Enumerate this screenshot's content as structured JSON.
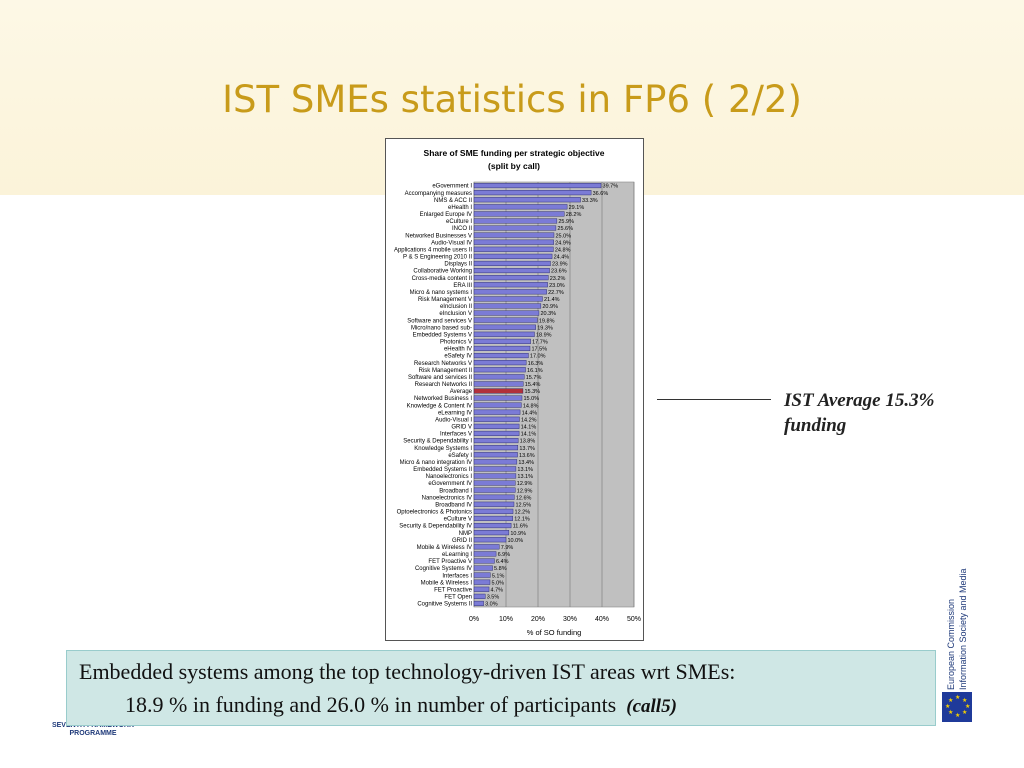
{
  "slide": {
    "title": "IST SMEs statistics in FP6 ( 2/2)",
    "annotation_line1": "IST Average  15.3%",
    "annotation_line2": "funding",
    "callout_line1": "Embedded systems among the top technology-driven IST areas wrt SMEs:",
    "callout_line2": "18.9 % in funding and 26.0 % in number of participants",
    "callout_call": "(call5)",
    "eu_text_1": "European Commission",
    "eu_text_2": "Information Society and Media",
    "fp7_text_1": "SEVENTH FRAMEWORK",
    "fp7_text_2": "PROGRAMME"
  },
  "colors": {
    "title": "#c89b1a",
    "bar": "#7b7bd6",
    "bar_highlight": "#b2303a",
    "plot_bg": "#c0c0c0",
    "callout_bg": "#cfe7e5"
  },
  "chart_data": {
    "type": "bar",
    "orientation": "horizontal",
    "title": "Share of SME funding per strategic objective",
    "subtitle": "(split by call)",
    "xlabel": "% of SO funding",
    "xlim": [
      0,
      50
    ],
    "xticks": [
      "0%",
      "10%",
      "20%",
      "30%",
      "40%",
      "50%"
    ],
    "grid": true,
    "highlight_category": "Average",
    "categories": [
      "eGovernment I",
      "Accompanying measures",
      "NMS & ACC II",
      "eHealth I",
      "Enlarged Europe IV",
      "eCulture I",
      "INCO II",
      "Networked Businesses V",
      "Audio-Visual IV",
      "Applications 4 mobile users II",
      "P & S Engineering 2010 II",
      "Displays II",
      "Collaborative Working",
      "Cross-media content II",
      "ERA III",
      "Micro & nano systems I",
      "Risk Management V",
      "eInclusion II",
      "eInclusion V",
      "Software and services V",
      "Micro/nano based sub-",
      "Embedded Systems V",
      "Photonics V",
      "eHealth IV",
      "eSafety IV",
      "Research Networks V",
      "Risk Management II",
      "Software and services II",
      "Research Networks II",
      "Average",
      "Networked Business I",
      "Knowledge & Content IV",
      "eLearning IV",
      "Audio-Visual I",
      "GRID V",
      "Interfaces V",
      "Security & Dependability I",
      "Knowledge Systems I",
      "eSafety I",
      "Micro & nano integration IV",
      "Embedded Systems II",
      "Nanoelectronics I",
      "eGovernment IV",
      "Broadband I",
      "Nanoelectronics IV",
      "Broadband IV",
      "Optoelectronics & Photonics",
      "eCulture V",
      "Security & Dependability IV",
      "NMP",
      "GRID II",
      "Mobile & Wireless IV",
      "eLearning I",
      "FET Proactive V",
      "Cognitive Systems IV",
      "Interfaces I",
      "Mobile & Wireless I",
      "FET Proactive",
      "FET Open",
      "Cognitive Systems II"
    ],
    "values": [
      39.7,
      36.6,
      33.3,
      29.1,
      28.2,
      25.9,
      25.6,
      25.0,
      24.9,
      24.8,
      24.4,
      23.9,
      23.6,
      23.2,
      23.0,
      22.7,
      21.4,
      20.9,
      20.3,
      19.8,
      19.3,
      18.9,
      17.7,
      17.5,
      17.0,
      16.3,
      16.1,
      15.7,
      15.4,
      15.3,
      15.0,
      14.8,
      14.4,
      14.2,
      14.1,
      14.1,
      13.8,
      13.7,
      13.6,
      13.4,
      13.1,
      13.1,
      12.9,
      12.9,
      12.6,
      12.5,
      12.2,
      12.1,
      11.6,
      10.9,
      10.0,
      7.9,
      6.9,
      6.4,
      5.8,
      5.1,
      5.0,
      4.7,
      3.5,
      3.0
    ],
    "value_labels": [
      "39.7%",
      "36.6%",
      "33.3%",
      "29.1%",
      "28.2%",
      "25.9%",
      "25.6%",
      "25.0%",
      "24.9%",
      "24.8%",
      "24.4%",
      "23.9%",
      "23.6%",
      "23.2%",
      "23.0%",
      "22.7%",
      "21.4%",
      "20.9%",
      "20.3%",
      "19.8%",
      "19.3%",
      "18.9%",
      "17.7%",
      "17.5%",
      "17.0%",
      "16.3%",
      "16.1%",
      "15.7%",
      "15.4%",
      "15.3%",
      "15.0%",
      "14.8%",
      "14.4%",
      "14.2%",
      "14.1%",
      "14.1%",
      "13.8%",
      "13.7%",
      "13.6%",
      "13.4%",
      "13.1%",
      "13.1%",
      "12.9%",
      "12.9%",
      "12.6%",
      "12.5%",
      "12.2%",
      "12.1%",
      "11.6%",
      "10.9%",
      "10.0%",
      "7.9%",
      "6.9%",
      "6.4%",
      "5.8%",
      "5.1%",
      "5.0%",
      "4.7%",
      "3.5%",
      "3.0%"
    ]
  }
}
